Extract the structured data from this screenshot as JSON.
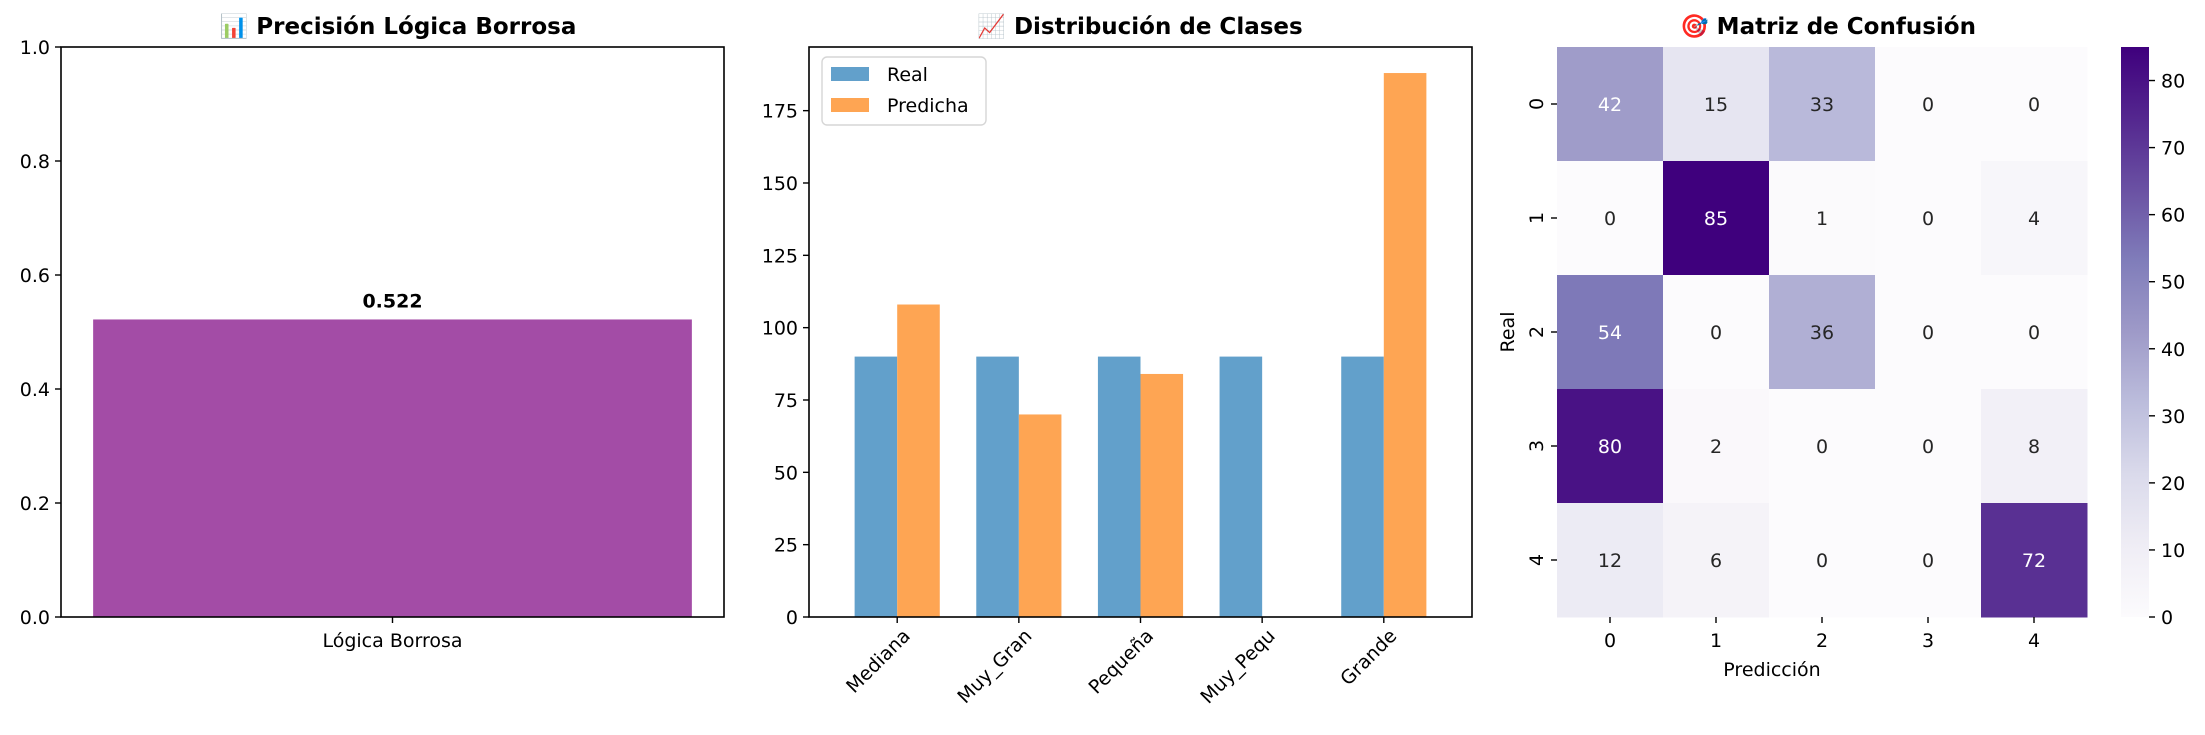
{
  "chart_data": [
    {
      "type": "bar",
      "title": "📊 Precisión Lógica Borrosa",
      "categories": [
        "Lógica Borrosa"
      ],
      "values": [
        0.522
      ],
      "value_labels": [
        "0.522"
      ],
      "ylim": [
        0,
        1.0
      ],
      "yticks": [
        "0.0",
        "0.2",
        "0.4",
        "0.6",
        "0.8",
        "1.0"
      ],
      "color": "#a34ca6",
      "grid": false
    },
    {
      "type": "bar",
      "title": "📈 Distribución de Clases",
      "categories": [
        "Mediana",
        "Muy_Gran",
        "Pequeña",
        "Muy_Pequ",
        "Grande"
      ],
      "series": [
        {
          "name": "Real",
          "values": [
            90,
            90,
            90,
            90,
            90
          ],
          "color": "#62a0cb"
        },
        {
          "name": "Predicha",
          "values": [
            108,
            70,
            84,
            0,
            188
          ],
          "color": "#fea553"
        }
      ],
      "ylim": [
        0,
        197
      ],
      "yticks": [
        "0",
        "25",
        "50",
        "75",
        "100",
        "125",
        "150",
        "175"
      ],
      "legend_position": "top-left",
      "grid": false
    },
    {
      "type": "heatmap",
      "title": "🎯 Matriz de Confusión",
      "xlabel": "Predicción",
      "ylabel": "Real",
      "x": [
        "0",
        "1",
        "2",
        "3",
        "4"
      ],
      "y": [
        "0",
        "1",
        "2",
        "3",
        "4"
      ],
      "values": [
        [
          42,
          15,
          33,
          0,
          0
        ],
        [
          0,
          85,
          1,
          0,
          4
        ],
        [
          54,
          0,
          36,
          0,
          0
        ],
        [
          80,
          2,
          0,
          0,
          8
        ],
        [
          12,
          6,
          0,
          0,
          72
        ]
      ],
      "vmin": 0,
      "vmax": 85,
      "colormap": "Purples",
      "colorbar_ticks": [
        "0",
        "10",
        "20",
        "30",
        "40",
        "50",
        "60",
        "70",
        "80"
      ]
    }
  ]
}
